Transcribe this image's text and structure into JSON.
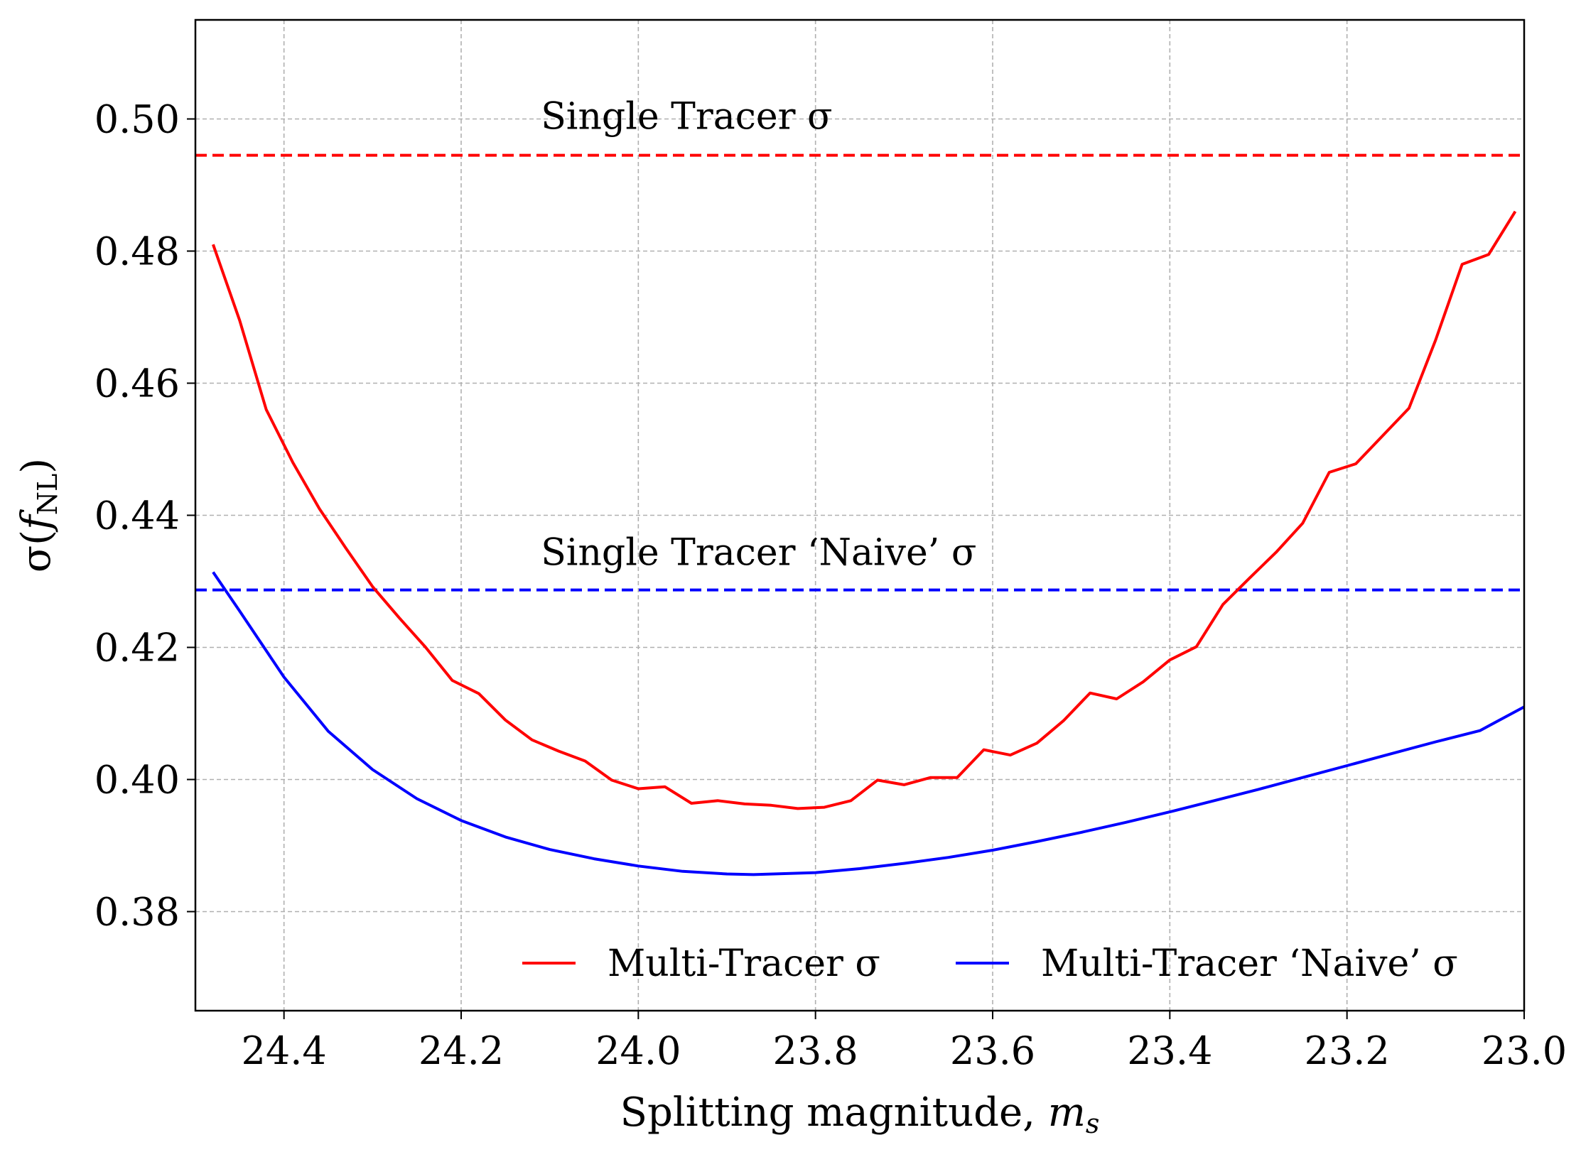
{
  "chart_data": {
    "type": "line",
    "xlabel": "Splitting magnitude, m_s",
    "xlabel_parts": {
      "text": "Splitting magnitude, ",
      "var": "m",
      "sub": "s"
    },
    "ylabel": "σ(f_NL)",
    "ylabel_parts": {
      "pre": "σ(",
      "var": "f",
      "sub": "NL",
      "post": ")"
    },
    "xlim": [
      24.5,
      23.0
    ],
    "x_inverted": true,
    "ylim": [
      0.365,
      0.515
    ],
    "x_ticks": [
      24.4,
      24.2,
      24.0,
      23.8,
      23.6,
      23.4,
      23.2,
      23.0
    ],
    "x_tick_labels": [
      "24.4",
      "24.2",
      "24.0",
      "23.8",
      "23.6",
      "23.4",
      "23.2",
      "23.0"
    ],
    "y_ticks": [
      0.38,
      0.4,
      0.42,
      0.44,
      0.46,
      0.48,
      0.5
    ],
    "y_tick_labels": [
      "0.38",
      "0.40",
      "0.42",
      "0.44",
      "0.46",
      "0.48",
      "0.50"
    ],
    "grid": true,
    "legend_position": "lower-right",
    "colors": {
      "red": "#ff0000",
      "blue": "#0000ff",
      "grid": "#b0b0b0"
    },
    "hlines": [
      {
        "name": "Single Tracer σ",
        "y": 0.4945,
        "color": "#ff0000",
        "style": "dashed"
      },
      {
        "name": "Single Tracer ‘Naive’ σ",
        "y": 0.4287,
        "color": "#0000ff",
        "style": "dashed"
      }
    ],
    "annotations": [
      {
        "text": "Single Tracer σ",
        "x": 24.11,
        "y": 0.4985
      },
      {
        "text": "Single Tracer ‘Naive’ σ",
        "x": 24.11,
        "y": 0.4325
      }
    ],
    "series": [
      {
        "name": "Multi-Tracer σ",
        "color": "#ff0000",
        "x": [
          24.48,
          24.45,
          24.42,
          24.39,
          24.36,
          24.33,
          24.3,
          24.27,
          24.24,
          24.21,
          24.18,
          24.15,
          24.12,
          24.09,
          24.06,
          24.03,
          24.0,
          23.97,
          23.94,
          23.91,
          23.88,
          23.85,
          23.82,
          23.79,
          23.76,
          23.73,
          23.7,
          23.67,
          23.64,
          23.61,
          23.58,
          23.55,
          23.52,
          23.49,
          23.46,
          23.43,
          23.4,
          23.37,
          23.34,
          23.31,
          23.28,
          23.25,
          23.22,
          23.19,
          23.16,
          23.13,
          23.1,
          23.07,
          23.04,
          23.01
        ],
        "values": [
          0.481,
          0.4695,
          0.456,
          0.448,
          0.441,
          0.435,
          0.4292,
          0.4245,
          0.42,
          0.415,
          0.413,
          0.409,
          0.406,
          0.4043,
          0.4028,
          0.3999,
          0.3986,
          0.3989,
          0.3964,
          0.3968,
          0.3963,
          0.3961,
          0.3956,
          0.3958,
          0.3968,
          0.3999,
          0.3992,
          0.4003,
          0.4003,
          0.4045,
          0.4037,
          0.4055,
          0.4089,
          0.4131,
          0.4122,
          0.4148,
          0.4181,
          0.4201,
          0.4265,
          0.4305,
          0.4344,
          0.4388,
          0.4465,
          0.4478,
          0.452,
          0.4562,
          0.4665,
          0.478,
          0.4795,
          0.486
        ]
      },
      {
        "name": "Multi-Tracer ‘Naive’ σ",
        "color": "#0000ff",
        "x": [
          24.48,
          24.45,
          24.4,
          24.35,
          24.3,
          24.25,
          24.2,
          24.15,
          24.1,
          24.05,
          24.0,
          23.95,
          23.9,
          23.87,
          23.8,
          23.75,
          23.7,
          23.65,
          23.6,
          23.55,
          23.5,
          23.45,
          23.4,
          23.35,
          23.3,
          23.25,
          23.2,
          23.15,
          23.1,
          23.05,
          23.0
        ],
        "values": [
          0.4314,
          0.4255,
          0.4155,
          0.4073,
          0.4015,
          0.3971,
          0.3938,
          0.3913,
          0.3894,
          0.388,
          0.3869,
          0.3861,
          0.3857,
          0.3856,
          0.3859,
          0.3865,
          0.3873,
          0.3882,
          0.3893,
          0.3906,
          0.392,
          0.3935,
          0.3951,
          0.3968,
          0.3985,
          0.4003,
          0.4021,
          0.4039,
          0.4057,
          0.4074,
          0.411
        ]
      }
    ]
  }
}
